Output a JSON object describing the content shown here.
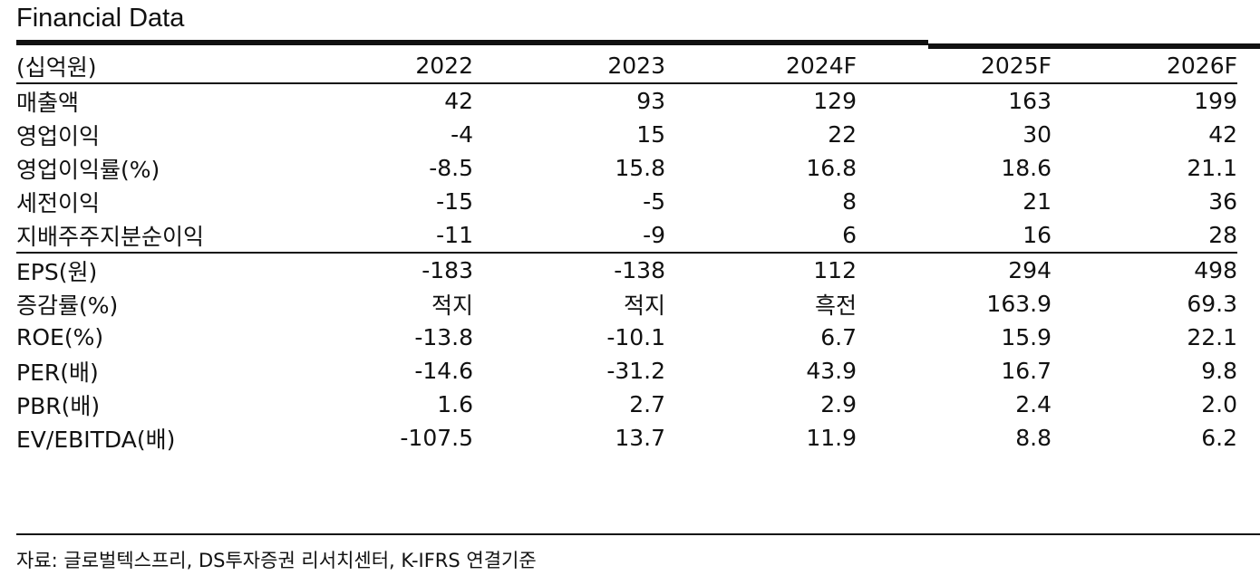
{
  "title": "Financial Data",
  "header": [
    "(십억원)",
    "2022",
    "2023",
    "2024F",
    "2025F",
    "2026F"
  ],
  "rows": [
    {
      "label": "매출액",
      "values": [
        "42",
        "93",
        "129",
        "163",
        "199"
      ]
    },
    {
      "label": "영업이익",
      "values": [
        "-4",
        "15",
        "22",
        "30",
        "42"
      ]
    },
    {
      "label": "영업이익률(%)",
      "values": [
        "-8.5",
        "15.8",
        "16.8",
        "18.6",
        "21.1"
      ]
    },
    {
      "label": "세전이익",
      "values": [
        "-15",
        "-5",
        "8",
        "21",
        "36"
      ]
    },
    {
      "label": "지배주주지분순이익",
      "values": [
        "-11",
        "-9",
        "6",
        "16",
        "28"
      ]
    },
    {
      "label": "EPS(원)",
      "values": [
        "-183",
        "-138",
        "112",
        "294",
        "498"
      ]
    },
    {
      "label": "증감률(%)",
      "values": [
        "적지",
        "적지",
        "흑전",
        "163.9",
        "69.3"
      ]
    },
    {
      "label": "ROE(%)",
      "values": [
        "-13.8",
        "-10.1",
        "6.7",
        "15.9",
        "22.1"
      ]
    },
    {
      "label": "PER(배)",
      "values": [
        "-14.6",
        "-31.2",
        "43.9",
        "16.7",
        "9.8"
      ]
    },
    {
      "label": "PBR(배)",
      "values": [
        "1.6",
        "2.7",
        "2.9",
        "2.4",
        "2.0"
      ]
    },
    {
      "label": "EV/EBITDA(배)",
      "values": [
        "-107.5",
        "13.7",
        "11.9",
        "8.8",
        "6.2"
      ]
    }
  ],
  "source": "자료: 글로벌텍스프리, DS투자증권 리서치센터, K-IFRS 연결기준"
}
